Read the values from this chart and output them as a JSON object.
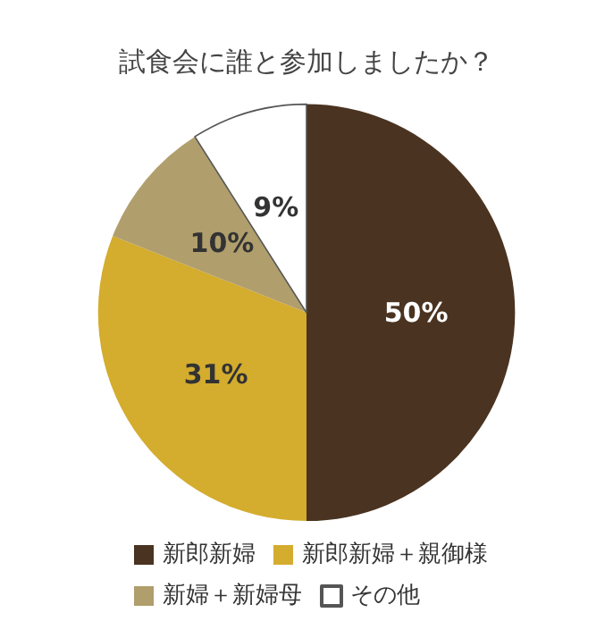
{
  "chart_data": {
    "type": "pie",
    "title": "試食会に誰と参加しましたか？",
    "categories": [
      "新郎新婦",
      "新郎新婦＋親御様",
      "新婦＋新婦母",
      "その他"
    ],
    "values": [
      50,
      31,
      10,
      9
    ],
    "colors": [
      "#4a3320",
      "#d4ac2e",
      "#b09e6c",
      "#ffffff"
    ],
    "value_labels": [
      "50%",
      "31%",
      "10%",
      "9%"
    ],
    "legend": "bottom"
  }
}
